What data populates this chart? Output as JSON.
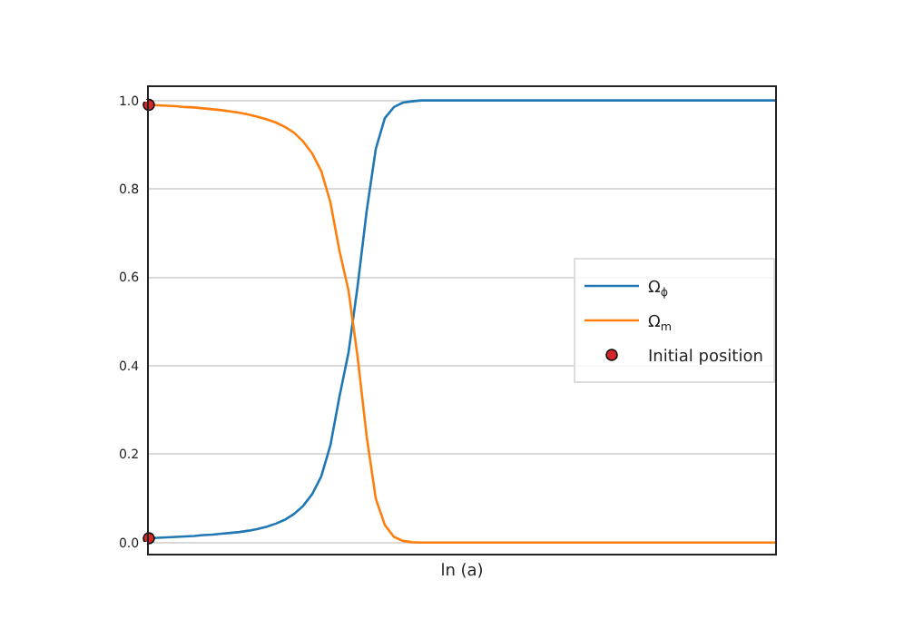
{
  "chart_data": {
    "type": "line",
    "xlabel": "ln (a)",
    "categories": [
      null,
      null,
      null,
      null,
      null,
      null,
      null,
      null,
      null,
      null,
      null,
      null,
      null,
      null,
      null,
      null,
      null,
      null,
      null,
      null,
      null,
      null,
      null,
      null,
      null,
      null,
      null,
      null,
      null,
      null,
      null,
      null,
      null,
      null,
      null,
      null,
      null,
      null,
      null,
      null,
      null,
      null,
      null,
      null,
      null,
      null,
      null,
      null,
      null,
      null,
      null,
      null,
      null,
      null,
      null,
      null,
      null,
      null,
      null,
      null,
      null,
      null,
      null,
      null,
      null,
      null,
      null,
      null,
      null,
      null
    ],
    "ylim": [
      -0.025,
      1.03
    ],
    "yticks": [
      {
        "value": 0,
        "label": "0.0"
      },
      0.2,
      0.4,
      0.6,
      0.8,
      {
        "value": 1,
        "label": "1.0"
      }
    ],
    "grid": "y",
    "legend": "right",
    "line_style": "solid",
    "marker": "none",
    "series": [
      {
        "name": "Ω$_{ϕ}$",
        "color": "#1f77b4",
        "values": [
          0.01,
          0.011,
          0.012,
          0.013,
          0.014,
          0.015,
          0.017,
          0.018,
          0.02,
          0.022,
          0.024,
          0.027,
          0.031,
          0.036,
          0.043,
          0.052,
          0.065,
          0.083,
          0.11,
          0.15,
          0.22,
          0.33,
          0.43,
          0.58,
          0.75,
          0.89,
          0.96,
          0.985,
          0.995,
          0.998,
          1,
          1,
          1,
          1,
          1,
          1,
          1,
          1,
          1,
          1,
          1,
          1,
          1,
          1,
          1,
          1,
          1,
          1,
          1,
          1,
          1,
          1,
          1,
          1,
          1,
          1,
          1,
          1,
          1,
          1,
          1,
          1,
          1,
          1,
          1,
          1,
          1,
          1,
          1,
          1
        ]
      },
      {
        "name": "Ω$_{m}$",
        "color": "#ff7f0e",
        "values": [
          0.99,
          0.989,
          0.988,
          0.987,
          0.985,
          0.984,
          0.982,
          0.98,
          0.978,
          0.975,
          0.972,
          0.968,
          0.963,
          0.957,
          0.95,
          0.94,
          0.927,
          0.907,
          0.88,
          0.84,
          0.77,
          0.66,
          0.57,
          0.42,
          0.24,
          0.1,
          0.04,
          0.013,
          0.004,
          0.001,
          0,
          0,
          0,
          0,
          0,
          0,
          0,
          0,
          0,
          0,
          0,
          0,
          0,
          0,
          0,
          0,
          0,
          0,
          0,
          0,
          0,
          0,
          0,
          0,
          0,
          0,
          0,
          0,
          0,
          0,
          0,
          0,
          0,
          0,
          0,
          0,
          0,
          0,
          0,
          0
        ]
      },
      {
        "name": "Initial position",
        "type": "scatter",
        "marker": "circle",
        "color": "#d62728",
        "values": [
          0.99,
          null,
          null,
          null,
          null,
          null,
          null,
          null,
          null,
          null,
          null,
          null,
          null,
          null,
          null,
          null,
          null,
          null,
          null,
          null,
          null,
          null,
          null,
          null,
          null,
          null,
          null,
          null,
          null,
          null,
          null,
          null,
          null,
          null,
          null,
          null,
          null,
          null,
          null,
          null,
          null,
          null,
          null,
          null,
          null,
          null,
          null,
          null,
          null,
          null,
          null,
          null,
          null,
          null,
          null,
          null,
          null,
          null,
          null,
          null,
          null,
          null,
          null,
          null,
          null,
          null,
          null,
          null,
          null,
          null
        ]
      },
      {
        "type": "scatter",
        "marker": "circle",
        "color": "#d62728",
        "values": [
          0.01,
          null,
          null,
          null,
          null,
          null,
          null,
          null,
          null,
          null,
          null,
          null,
          null,
          null,
          null,
          null,
          null,
          null,
          null,
          null,
          null,
          null,
          null,
          null,
          null,
          null,
          null,
          null,
          null,
          null,
          null,
          null,
          null,
          null,
          null,
          null,
          null,
          null,
          null,
          null,
          null,
          null,
          null,
          null,
          null,
          null,
          null,
          null,
          null,
          null,
          null,
          null,
          null,
          null,
          null,
          null,
          null,
          null,
          null,
          null,
          null,
          null,
          null,
          null,
          null,
          null,
          null,
          null,
          null,
          null
        ]
      }
    ]
  }
}
